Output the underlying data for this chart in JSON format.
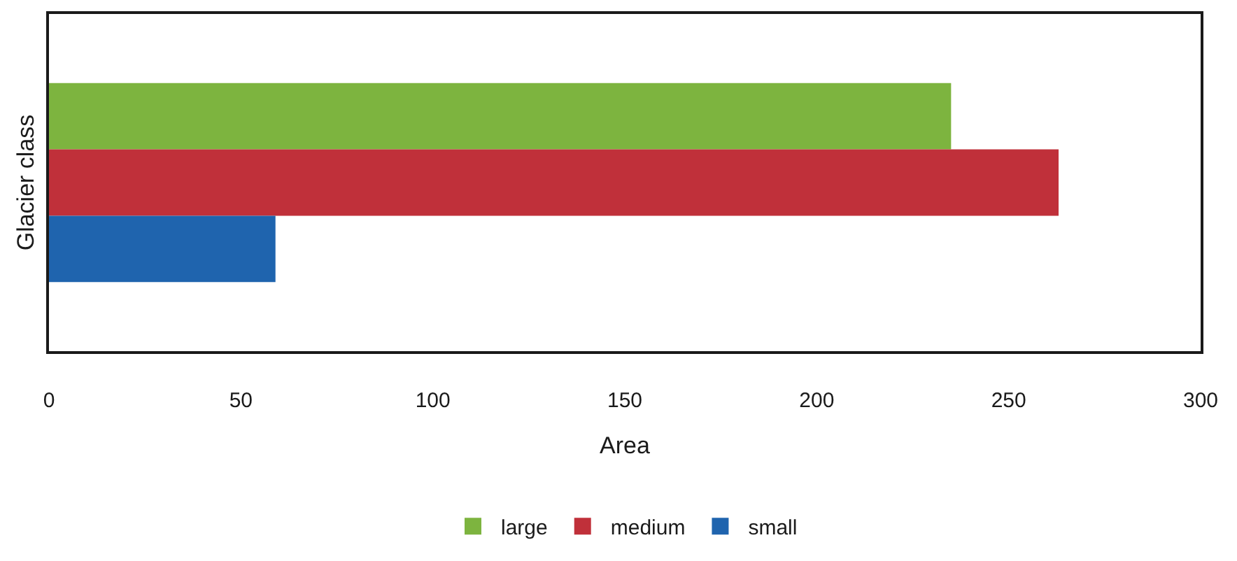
{
  "chart_data": {
    "type": "bar",
    "orientation": "horizontal",
    "xlabel": "Area",
    "ylabel": "Glacier class",
    "categories": [
      null
    ],
    "series": [
      {
        "name": "large",
        "color": "#7db43f",
        "values": [
          235
        ]
      },
      {
        "name": "medium",
        "color": "#c0303a",
        "values": [
          263
        ]
      },
      {
        "name": "small",
        "color": "#1f64ae",
        "values": [
          59
        ]
      }
    ],
    "xlim": [
      0,
      300
    ],
    "xticks": [
      0,
      50,
      100,
      150,
      200,
      250,
      300
    ],
    "legend": "bottom",
    "tick_labels": "x"
  }
}
